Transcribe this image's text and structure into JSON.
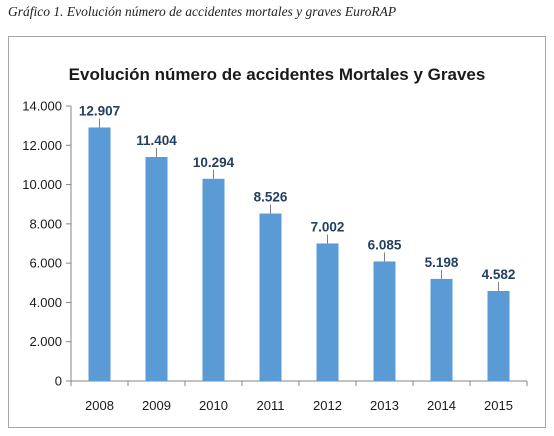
{
  "caption": "Gráfico 1.  Evolución número de accidentes mortales y graves EuroRAP",
  "chart_data": {
    "type": "bar",
    "title": "Evolución número de accidentes Mortales y Graves",
    "categories": [
      "2008",
      "2009",
      "2010",
      "2011",
      "2012",
      "2013",
      "2014",
      "2015"
    ],
    "values": [
      12907,
      11404,
      10294,
      8526,
      7002,
      6085,
      5198,
      4582
    ],
    "value_labels": [
      "12.907",
      "11.404",
      "10.294",
      "8.526",
      "7.002",
      "6.085",
      "5.198",
      "4.582"
    ],
    "y_ticks": [
      0,
      2000,
      4000,
      6000,
      8000,
      10000,
      12000,
      14000
    ],
    "y_tick_labels": [
      "0",
      "2.000",
      "4.000",
      "6.000",
      "8.000",
      "10.000",
      "12.000",
      "14.000"
    ],
    "ylim": [
      0,
      14000
    ],
    "grid": false,
    "legend": "none",
    "bar_color": "#5b9bd5",
    "label_color": "#243f60"
  }
}
